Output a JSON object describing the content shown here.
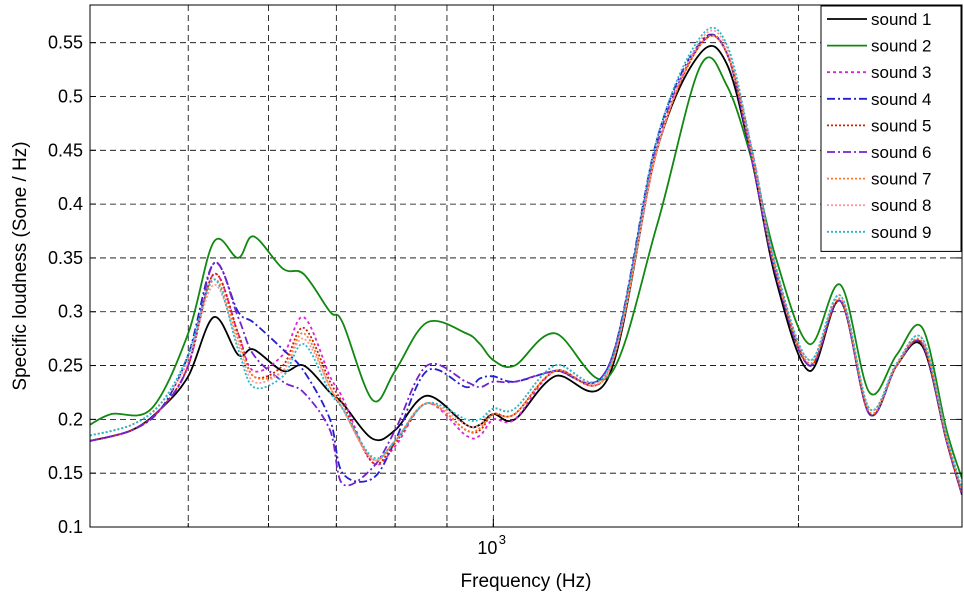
{
  "chart_data": {
    "type": "line",
    "title": "",
    "xlabel": "Frequency (Hz)",
    "ylabel": "Specific loudness (Sone / Hz)",
    "x_scale": "log",
    "xlim": [
      400,
      2900
    ],
    "ylim": [
      0.1,
      0.585
    ],
    "x_ticks": [
      {
        "value": 1000,
        "base": "10",
        "exp": "3"
      }
    ],
    "x_grid": [
      500,
      600,
      700,
      800,
      900,
      1000,
      2000
    ],
    "y_ticks": [
      0.1,
      0.15,
      0.2,
      0.25,
      0.3,
      0.35,
      0.4,
      0.45,
      0.5,
      0.55
    ],
    "y_tick_labels": [
      "0.1",
      "0.15",
      "0.2",
      "0.25",
      "0.3",
      "0.35",
      "0.4",
      "0.45",
      "0.5",
      "0.55"
    ],
    "grid": true,
    "legend_position": "top-right",
    "series": [
      {
        "name": "sound 1",
        "color": "#000000",
        "dash": "",
        "x": [
          400,
          440,
          470,
          500,
          530,
          560,
          580,
          620,
          650,
          690,
          710,
          760,
          800,
          860,
          940,
          970,
          1000,
          1050,
          1150,
          1300,
          1450,
          1600,
          1700,
          1800,
          1900,
          2050,
          2200,
          2350,
          2500,
          2650,
          2800,
          2900
        ],
        "y": [
          0.18,
          0.19,
          0.21,
          0.24,
          0.295,
          0.26,
          0.265,
          0.245,
          0.25,
          0.225,
          0.215,
          0.182,
          0.19,
          0.222,
          0.195,
          0.195,
          0.205,
          0.2,
          0.24,
          0.24,
          0.45,
          0.54,
          0.53,
          0.44,
          0.33,
          0.245,
          0.31,
          0.205,
          0.25,
          0.268,
          0.18,
          0.13
        ]
      },
      {
        "name": "sound 2",
        "color": "#118811",
        "dash": "",
        "x": [
          400,
          420,
          460,
          500,
          530,
          560,
          580,
          620,
          650,
          690,
          710,
          760,
          800,
          860,
          940,
          970,
          1000,
          1050,
          1150,
          1300,
          1450,
          1600,
          1700,
          1800,
          1900,
          2050,
          2200,
          2350,
          2500,
          2650,
          2800,
          2900
        ],
        "y": [
          0.195,
          0.205,
          0.21,
          0.28,
          0.365,
          0.35,
          0.37,
          0.34,
          0.335,
          0.3,
          0.29,
          0.218,
          0.245,
          0.29,
          0.28,
          0.27,
          0.255,
          0.25,
          0.28,
          0.24,
          0.38,
          0.528,
          0.51,
          0.44,
          0.35,
          0.27,
          0.325,
          0.225,
          0.26,
          0.285,
          0.19,
          0.145
        ]
      },
      {
        "name": "sound 3",
        "color": "#dd22dd",
        "dash": "3,3",
        "x": [
          400,
          440,
          470,
          500,
          530,
          560,
          580,
          620,
          650,
          690,
          710,
          760,
          800,
          860,
          940,
          970,
          1000,
          1050,
          1150,
          1300,
          1450,
          1600,
          1700,
          1800,
          1900,
          2050,
          2200,
          2350,
          2500,
          2650,
          2800,
          2900
        ],
        "y": [
          0.18,
          0.19,
          0.21,
          0.25,
          0.335,
          0.28,
          0.245,
          0.26,
          0.295,
          0.24,
          0.22,
          0.16,
          0.175,
          0.215,
          0.185,
          0.185,
          0.2,
          0.2,
          0.245,
          0.245,
          0.45,
          0.55,
          0.54,
          0.45,
          0.34,
          0.25,
          0.31,
          0.205,
          0.25,
          0.27,
          0.18,
          0.13
        ]
      },
      {
        "name": "sound 4",
        "color": "#2222cc",
        "dash": "8,3,2,3",
        "x": [
          400,
          440,
          470,
          500,
          530,
          560,
          580,
          620,
          650,
          690,
          710,
          760,
          800,
          860,
          940,
          970,
          1000,
          1050,
          1150,
          1300,
          1450,
          1600,
          1700,
          1800,
          1900,
          2050,
          2200,
          2350,
          2500,
          2650,
          2800,
          2900
        ],
        "y": [
          0.18,
          0.19,
          0.21,
          0.26,
          0.345,
          0.3,
          0.29,
          0.265,
          0.245,
          0.2,
          0.15,
          0.145,
          0.18,
          0.245,
          0.23,
          0.238,
          0.24,
          0.235,
          0.245,
          0.25,
          0.46,
          0.55,
          0.54,
          0.44,
          0.335,
          0.25,
          0.31,
          0.205,
          0.25,
          0.27,
          0.18,
          0.13
        ]
      },
      {
        "name": "sound 5",
        "color": "#cc2200",
        "dash": "2,2",
        "x": [
          400,
          440,
          470,
          500,
          530,
          560,
          580,
          620,
          650,
          690,
          710,
          760,
          800,
          860,
          940,
          970,
          1000,
          1050,
          1150,
          1300,
          1450,
          1600,
          1700,
          1800,
          1900,
          2050,
          2200,
          2350,
          2500,
          2650,
          2800,
          2900
        ],
        "y": [
          0.18,
          0.19,
          0.21,
          0.25,
          0.335,
          0.28,
          0.24,
          0.25,
          0.285,
          0.235,
          0.215,
          0.16,
          0.178,
          0.215,
          0.19,
          0.19,
          0.205,
          0.205,
          0.245,
          0.245,
          0.45,
          0.548,
          0.54,
          0.445,
          0.338,
          0.25,
          0.31,
          0.205,
          0.25,
          0.27,
          0.18,
          0.13
        ]
      },
      {
        "name": "sound 6",
        "color": "#7722cc",
        "dash": "8,3,2,3",
        "x": [
          400,
          440,
          470,
          500,
          530,
          560,
          580,
          620,
          650,
          690,
          710,
          760,
          800,
          860,
          940,
          970,
          1000,
          1050,
          1150,
          1300,
          1450,
          1600,
          1700,
          1800,
          1900,
          2050,
          2200,
          2350,
          2500,
          2650,
          2800,
          2900
        ],
        "y": [
          0.18,
          0.19,
          0.21,
          0.25,
          0.345,
          0.295,
          0.26,
          0.235,
          0.225,
          0.19,
          0.14,
          0.155,
          0.19,
          0.25,
          0.235,
          0.23,
          0.235,
          0.235,
          0.245,
          0.25,
          0.455,
          0.548,
          0.54,
          0.44,
          0.335,
          0.25,
          0.31,
          0.205,
          0.25,
          0.27,
          0.18,
          0.13
        ]
      },
      {
        "name": "sound 7",
        "color": "#ff7722",
        "dash": "2,2",
        "x": [
          400,
          440,
          470,
          500,
          530,
          560,
          580,
          620,
          650,
          690,
          710,
          760,
          800,
          860,
          940,
          970,
          1000,
          1050,
          1150,
          1300,
          1450,
          1600,
          1700,
          1800,
          1900,
          2050,
          2200,
          2350,
          2500,
          2650,
          2800,
          2900
        ],
        "y": [
          0.185,
          0.195,
          0.215,
          0.255,
          0.33,
          0.275,
          0.24,
          0.245,
          0.28,
          0.23,
          0.21,
          0.163,
          0.18,
          0.215,
          0.19,
          0.192,
          0.205,
          0.205,
          0.245,
          0.245,
          0.45,
          0.548,
          0.54,
          0.445,
          0.338,
          0.252,
          0.312,
          0.207,
          0.25,
          0.272,
          0.182,
          0.132
        ]
      },
      {
        "name": "sound 8",
        "color": "#ff9999",
        "dash": "2,2",
        "x": [
          400,
          440,
          470,
          500,
          530,
          560,
          580,
          620,
          650,
          690,
          710,
          760,
          800,
          860,
          940,
          970,
          1000,
          1050,
          1150,
          1300,
          1450,
          1600,
          1700,
          1800,
          1900,
          2050,
          2200,
          2350,
          2500,
          2650,
          2800,
          2900
        ],
        "y": [
          0.185,
          0.195,
          0.215,
          0.255,
          0.325,
          0.27,
          0.235,
          0.245,
          0.275,
          0.23,
          0.21,
          0.163,
          0.18,
          0.215,
          0.195,
          0.195,
          0.21,
          0.21,
          0.25,
          0.245,
          0.45,
          0.552,
          0.545,
          0.448,
          0.34,
          0.255,
          0.315,
          0.21,
          0.252,
          0.275,
          0.185,
          0.135
        ]
      },
      {
        "name": "sound 9",
        "color": "#22bbcc",
        "dash": "2,2",
        "x": [
          400,
          440,
          470,
          500,
          530,
          560,
          580,
          620,
          650,
          690,
          710,
          760,
          800,
          860,
          940,
          970,
          1000,
          1050,
          1150,
          1300,
          1450,
          1600,
          1700,
          1800,
          1900,
          2050,
          2200,
          2350,
          2500,
          2650,
          2800,
          2900
        ],
        "y": [
          0.185,
          0.195,
          0.215,
          0.26,
          0.33,
          0.265,
          0.23,
          0.24,
          0.27,
          0.225,
          0.21,
          0.165,
          0.18,
          0.215,
          0.2,
          0.2,
          0.21,
          0.21,
          0.25,
          0.248,
          0.46,
          0.555,
          0.548,
          0.45,
          0.342,
          0.255,
          0.315,
          0.21,
          0.252,
          0.275,
          0.185,
          0.135
        ]
      }
    ]
  }
}
